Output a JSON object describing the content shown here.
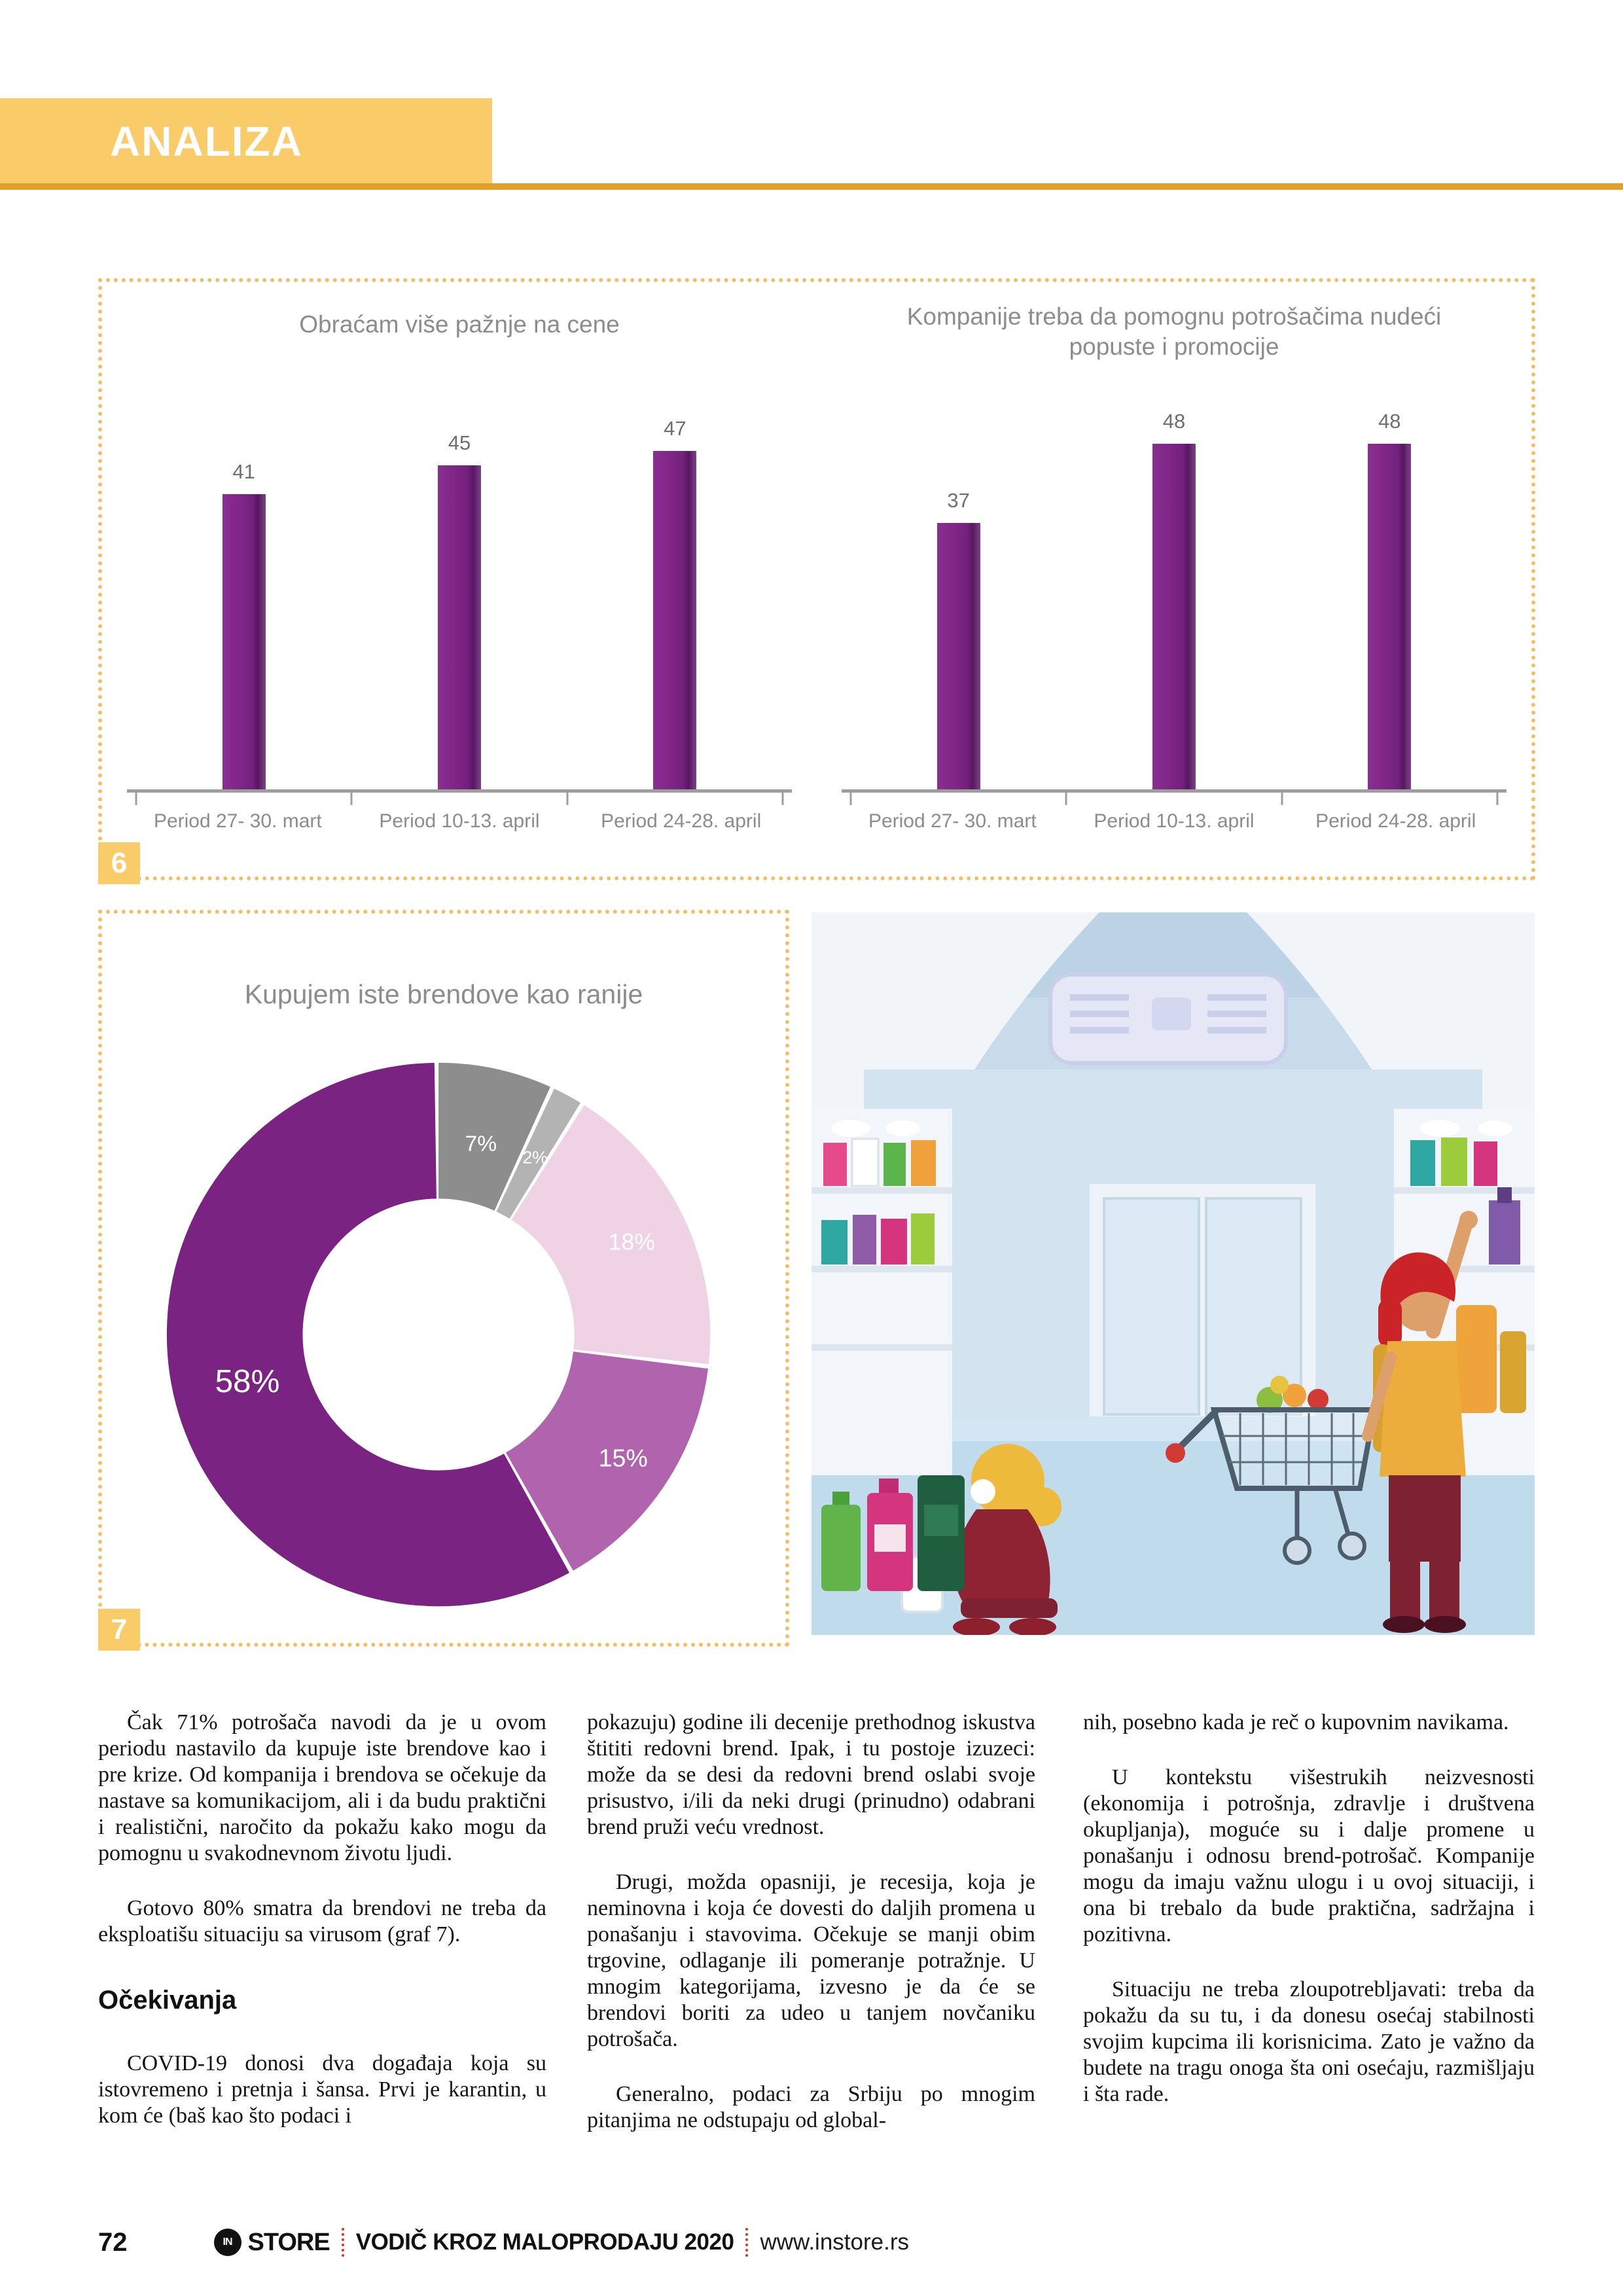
{
  "section_label": "ANALIZA",
  "colors": {
    "accent_yellow": "#FACB69",
    "rule_orange": "#DFA02C",
    "dotted_border_orange": "#F5BD60",
    "bar_purple": "#7B2383",
    "axis_gray": "#9E9E9E",
    "chart_title_gray": "#8C8C8C",
    "footer_red": "#D63327"
  },
  "chart_data": [
    {
      "type": "bar",
      "figure_number": "6",
      "title": "Obraćam više pažnje na cene",
      "categories": [
        "Period 27- 30. mart",
        "Period 10-13. april",
        "Period 24-28. april"
      ],
      "values": [
        41,
        45,
        47
      ],
      "bar_color": "#7B2383",
      "ylim": [
        0,
        55
      ],
      "grid": false,
      "value_labels": true
    },
    {
      "type": "bar",
      "figure_number": "6",
      "title": "Kompanije treba da pomognu potrošačima nudeći popuste i promocije",
      "categories": [
        "Period 27- 30. mart",
        "Period 10-13. april",
        "Period 24-28. april"
      ],
      "values": [
        37,
        48,
        48
      ],
      "bar_color": "#7B2383",
      "ylim": [
        0,
        55
      ],
      "grid": false,
      "value_labels": true
    },
    {
      "type": "donut",
      "figure_number": "7",
      "title": "Kupujem iste brendove kao ranije",
      "clockwise": true,
      "start_at_top": true,
      "inner_radius_pct": 50,
      "segments": [
        {
          "label": "7%",
          "value": 7,
          "color": "#8D8D8D"
        },
        {
          "label": "2%",
          "value": 2,
          "color": "#B3B3B3"
        },
        {
          "label": "18%",
          "value": 18,
          "color": "#EFD2E4"
        },
        {
          "label": "15%",
          "value": 15,
          "color": "#B164AE"
        },
        {
          "label": "58%",
          "value": 58,
          "color": "#7B2383"
        }
      ]
    }
  ],
  "article": {
    "columns": [
      {
        "blocks": [
          {
            "type": "p",
            "indent": true,
            "text": "Čak 71% potrošača navodi da je u ovom periodu nastavilo da kupuje iste brendove kao i pre krize. Od kompanija i brendova se očekuje da nastave sa komunikacijom, ali i da budu praktični i realistični, naročito da pokažu kako mogu da pomognu u svakodnevnom životu ljudi."
          },
          {
            "type": "p",
            "indent": true,
            "text": "Gotovo 80% smatra da brendovi ne treba da eksploatišu situaciju sa virusom (graf 7)."
          },
          {
            "type": "h",
            "text": "Očekivanja"
          },
          {
            "type": "p",
            "indent": true,
            "text": "COVID-19 donosi dva događaja koja su istovremeno i pretnja i šansa. Prvi je karantin, u kom će (baš kao što podaci i"
          }
        ]
      },
      {
        "blocks": [
          {
            "type": "p",
            "indent": false,
            "text": "pokazuju) godine ili decenije prethodnog iskustva štititi redovni brend. Ipak, i tu postoje izuzeci: može da se desi da redovni brend oslabi svoje prisustvo, i/ili da neki drugi (prinudno) odabrani brend pruži veću vrednost."
          },
          {
            "type": "p",
            "indent": true,
            "text": "Drugi, možda opasniji, je recesija, koja je neminovna i koja će dovesti do daljih promena u ponašanju i stavovima. Očekuje se manji obim trgovine, odlaganje ili pomeranje potražnje. U mnogim kategorijama, izvesno je da će se brendovi boriti za udeo u tanjem novčaniku potrošača."
          },
          {
            "type": "p",
            "indent": true,
            "text": "Generalno, podaci za Srbiju po mnogim pitanjima ne odstupaju od global-"
          }
        ]
      },
      {
        "blocks": [
          {
            "type": "p",
            "indent": false,
            "text": "nih, posebno kada je reč o kupovnim navikama."
          },
          {
            "type": "p",
            "indent": true,
            "text": "U kontekstu višestrukih neizvesnosti (ekonomija i potrošnja, zdravlje i društvena okupljanja), moguće su i dalje promene u ponašanju i odnosu brend-potrošač. Kompanije mogu da imaju važnu ulogu i u ovoj situaciji, i ona bi trebalo da bude praktična, sadržajna i pozitivna."
          },
          {
            "type": "p",
            "indent": true,
            "text": "Situaciju ne treba zloupotrebljavati: treba da pokažu da su tu, i da donesu osećaj stabilnosti svojim kupcima ili korisnicima. Zato je važno da budete na tragu onoga šta oni osećaju, razmišljaju i šta rade."
          }
        ]
      }
    ]
  },
  "footer": {
    "page_number": "72",
    "logo_monogram": "IN",
    "logo_word": "STORE",
    "guide_title": "VODIČ KROZ MALOPRODAJU 2020",
    "website": "www.instore.rs"
  }
}
